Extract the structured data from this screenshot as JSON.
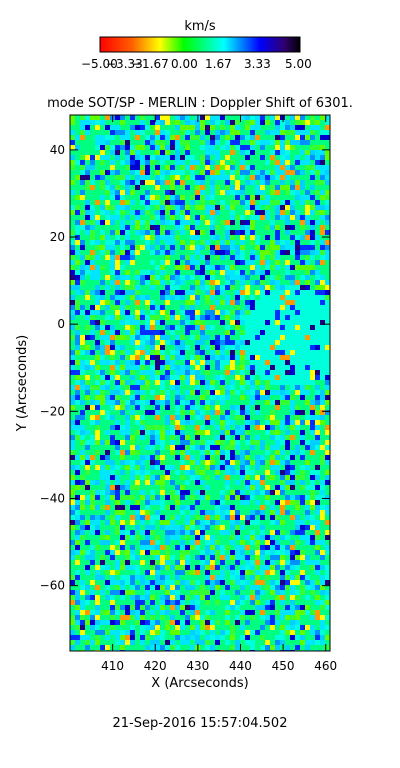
{
  "chart_data": {
    "type": "heatmap",
    "title": "mode SOT/SP - MERLIN : Doppler Shift of 6301.",
    "xlabel": "X (Arcseconds)",
    "ylabel": "Y (Arcseconds)",
    "xlim": [
      400,
      461
    ],
    "ylim": [
      -75,
      48
    ],
    "x_ticks": [
      "410",
      "420",
      "430",
      "440",
      "450",
      "460"
    ],
    "y_ticks": [
      "40",
      "20",
      "0",
      "−20",
      "−40",
      "−60"
    ],
    "x_tick_values": [
      410,
      420,
      430,
      440,
      450,
      460
    ],
    "y_tick_values": [
      40,
      20,
      0,
      -20,
      -40,
      -60
    ],
    "colorbar": {
      "unit": "km/s",
      "min": -5.0,
      "max": 5.0,
      "tick_labels": [
        "−5.00",
        "−3.33",
        "−1.67",
        "0.00",
        "1.67",
        "3.33",
        "5.00"
      ],
      "colors": [
        "#ff0000",
        "#ffff00",
        "#00ff00",
        "#00ffff",
        "#0000ff",
        "#000000"
      ]
    },
    "field_description_colors": {
      "dominant": "#00ffdd",
      "secondary": "#00ff80",
      "sparse": [
        "#ffff00",
        "#0000ff"
      ]
    },
    "timestamp": "21-Sep-2016 15:57:04.502"
  }
}
